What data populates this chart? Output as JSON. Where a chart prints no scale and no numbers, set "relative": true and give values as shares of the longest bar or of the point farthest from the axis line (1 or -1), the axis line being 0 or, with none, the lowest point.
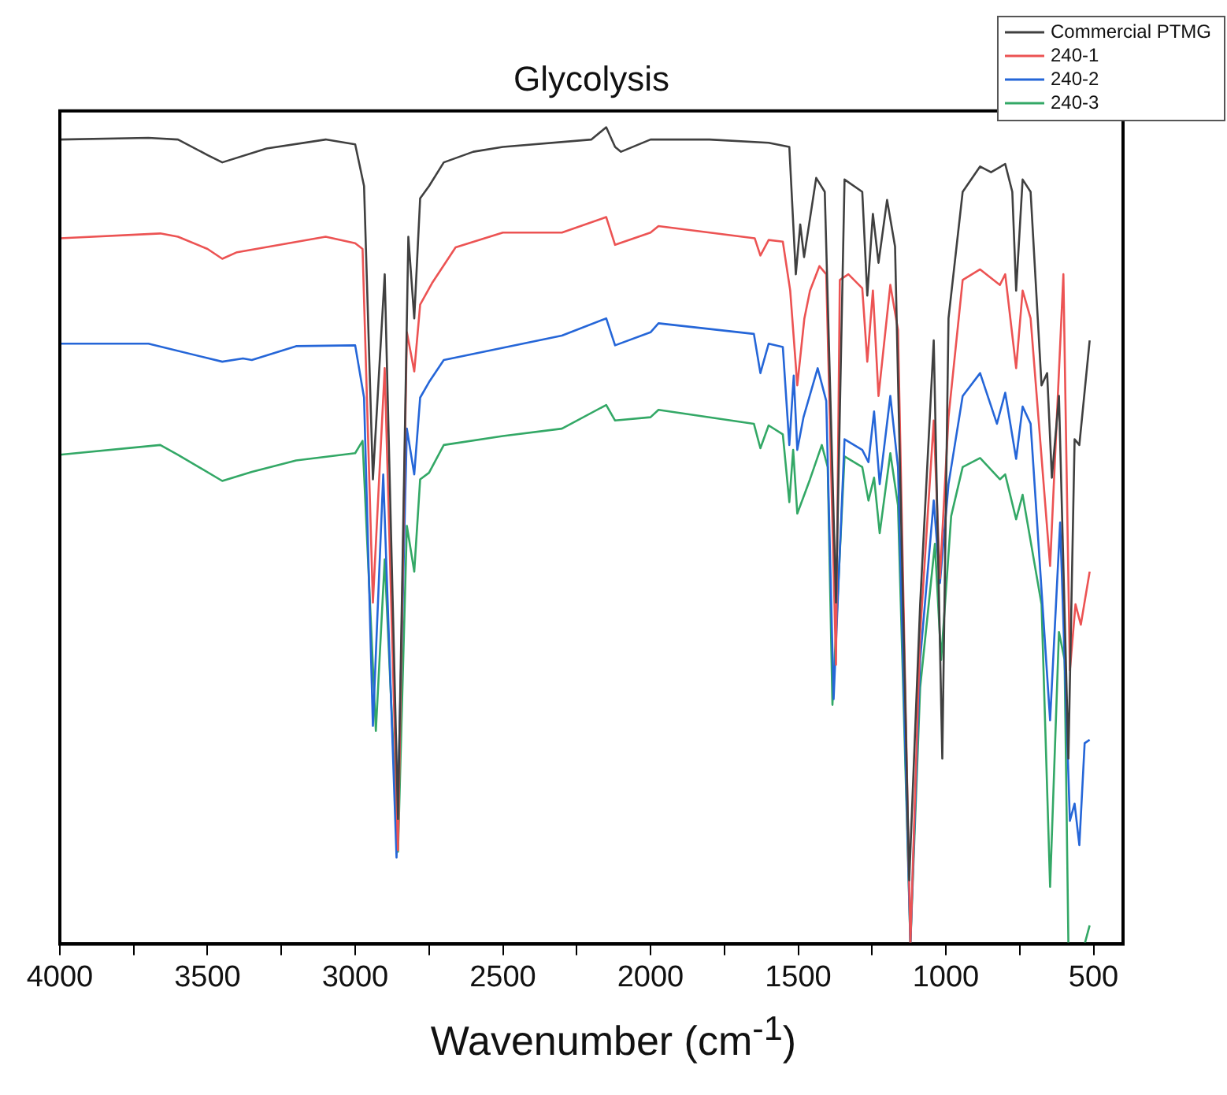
{
  "chart_data": {
    "type": "line",
    "title": "Glycolysis",
    "xlabel": "Wavenumber (cm$^{-1}$)",
    "relative": true,
    "xlim": [
      4000,
      400
    ],
    "xticks": [
      4000,
      {
        "value": 3750,
        "label": null
      },
      3500,
      {
        "value": 3250,
        "label": null
      },
      3000,
      {
        "value": 2750,
        "label": null
      },
      2500,
      {
        "value": 2250,
        "label": null
      },
      2000,
      {
        "value": 1750,
        "label": null
      },
      1500,
      {
        "value": 1250,
        "label": null
      },
      1000,
      {
        "value": 750,
        "label": null
      },
      500
    ],
    "tick_labels": "x",
    "grid": false,
    "legend": "top right",
    "marker": "none",
    "line_style": "solid",
    "series": [
      {
        "name": "Commercial PTMG",
        "color": "#404040",
        "x": [
          4000,
          3700,
          3600,
          3500,
          3450,
          3300,
          3100,
          3000,
          2970,
          2940,
          2900,
          2855,
          2820,
          2800,
          2780,
          2750,
          2700,
          2600,
          2500,
          2200,
          2150,
          2120,
          2100,
          2000,
          1800,
          1600,
          1530,
          1508,
          1493,
          1480,
          1439,
          1410,
          1372,
          1343,
          1283,
          1266,
          1247,
          1228,
          1199,
          1172,
          1124,
          1087,
          1041,
          1012,
          991,
          943,
          884,
          847,
          799,
          775,
          762,
          740,
          713,
          676,
          657,
          641,
          617,
          585,
          564,
          548,
          513
        ],
        "values": [
          0.985,
          0.987,
          0.985,
          0.966,
          0.957,
          0.974,
          0.985,
          0.979,
          0.928,
          0.569,
          0.82,
          0.153,
          0.866,
          0.766,
          0.913,
          0.928,
          0.957,
          0.97,
          0.976,
          0.985,
          1.0,
          0.976,
          0.97,
          0.985,
          0.985,
          0.981,
          0.976,
          0.82,
          0.881,
          0.841,
          0.938,
          0.921,
          0.418,
          0.936,
          0.921,
          0.794,
          0.894,
          0.834,
          0.911,
          0.854,
          0.078,
          0.416,
          0.739,
          0.227,
          0.766,
          0.921,
          0.952,
          0.945,
          0.955,
          0.921,
          0.8,
          0.936,
          0.921,
          0.684,
          0.699,
          0.571,
          0.671,
          0.227,
          0.618,
          0.611,
          0.739
        ]
      },
      {
        "name": "240-1",
        "color": "#ec5353",
        "x": [
          4000,
          3660,
          3600,
          3500,
          3450,
          3400,
          3100,
          3000,
          2975,
          2940,
          2900,
          2855,
          2825,
          2800,
          2780,
          2740,
          2660,
          2500,
          2300,
          2150,
          2120,
          2000,
          1973,
          1647,
          1628,
          1600,
          1552,
          1527,
          1503,
          1479,
          1460,
          1428,
          1405,
          1372,
          1359,
          1330,
          1283,
          1266,
          1247,
          1228,
          1188,
          1162,
          1120,
          1087,
          1041,
          1020,
          991,
          943,
          884,
          817,
          799,
          762,
          740,
          713,
          647,
          602,
          580,
          561,
          543,
          513
        ],
        "values": [
          0.864,
          0.87,
          0.866,
          0.851,
          0.839,
          0.847,
          0.866,
          0.858,
          0.851,
          0.418,
          0.705,
          0.115,
          0.749,
          0.701,
          0.783,
          0.809,
          0.853,
          0.871,
          0.871,
          0.89,
          0.856,
          0.871,
          0.879,
          0.864,
          0.843,
          0.862,
          0.86,
          0.8,
          0.684,
          0.766,
          0.8,
          0.83,
          0.82,
          0.342,
          0.813,
          0.82,
          0.803,
          0.713,
          0.8,
          0.671,
          0.807,
          0.752,
          0,
          0.38,
          0.641,
          0.448,
          0.645,
          0.813,
          0.826,
          0.807,
          0.82,
          0.705,
          0.8,
          0.766,
          0.463,
          0.82,
          0.335,
          0.416,
          0.391,
          0.456
        ]
      },
      {
        "name": "240-2",
        "color": "#2566d8",
        "x": [
          4000,
          3700,
          3450,
          3380,
          3350,
          3200,
          3000,
          2970,
          2940,
          2905,
          2860,
          2825,
          2800,
          2780,
          2750,
          2700,
          2500,
          2300,
          2150,
          2120,
          2000,
          1973,
          1650,
          1628,
          1600,
          1552,
          1530,
          1515,
          1503,
          1482,
          1434,
          1405,
          1380,
          1343,
          1283,
          1262,
          1243,
          1224,
          1188,
          1162,
          1120,
          1087,
          1041,
          1020,
          991,
          943,
          884,
          827,
          799,
          762,
          740,
          713,
          647,
          613,
          580,
          564,
          548,
          530,
          513
        ],
        "values": [
          0.735,
          0.735,
          0.713,
          0.717,
          0.715,
          0.732,
          0.733,
          0.669,
          0.267,
          0.575,
          0.106,
          0.631,
          0.575,
          0.669,
          0.688,
          0.715,
          0.73,
          0.745,
          0.766,
          0.733,
          0.749,
          0.76,
          0.747,
          0.699,
          0.735,
          0.731,
          0.611,
          0.696,
          0.605,
          0.645,
          0.705,
          0.665,
          0.3,
          0.618,
          0.605,
          0.59,
          0.652,
          0.563,
          0.671,
          0.584,
          0,
          0.348,
          0.543,
          0.442,
          0.563,
          0.671,
          0.699,
          0.637,
          0.675,
          0.594,
          0.658,
          0.637,
          0.274,
          0.516,
          0.151,
          0.172,
          0.121,
          0.246,
          0.25
        ]
      },
      {
        "name": "240-3",
        "color": "#33a866",
        "x": [
          4000,
          3660,
          3600,
          3450,
          3350,
          3200,
          3000,
          2975,
          2930,
          2900,
          2855,
          2825,
          2800,
          2780,
          2750,
          2700,
          2500,
          2300,
          2150,
          2120,
          2000,
          1973,
          1650,
          1628,
          1600,
          1552,
          1530,
          1517,
          1503,
          1460,
          1420,
          1400,
          1384,
          1343,
          1283,
          1262,
          1243,
          1224,
          1188,
          1162,
          1120,
          1087,
          1037,
          1016,
          982,
          943,
          884,
          817,
          799,
          762,
          740,
          676,
          647,
          617,
          598,
          585,
          530,
          513
        ],
        "values": [
          0.599,
          0.611,
          0.599,
          0.567,
          0.578,
          0.592,
          0.601,
          0.616,
          0.261,
          0.471,
          0.113,
          0.512,
          0.456,
          0.569,
          0.577,
          0.611,
          0.622,
          0.631,
          0.66,
          0.641,
          0.645,
          0.654,
          0.637,
          0.607,
          0.635,
          0.624,
          0.541,
          0.605,
          0.527,
          0.569,
          0.611,
          0.584,
          0.293,
          0.597,
          0.584,
          0.543,
          0.571,
          0.503,
          0.601,
          0.537,
          0,
          0.314,
          0.49,
          0.348,
          0.524,
          0.584,
          0.595,
          0.569,
          0.575,
          0.52,
          0.55,
          0.416,
          0.07,
          0.382,
          0.348,
          0,
          0,
          0.023
        ]
      }
    ]
  }
}
